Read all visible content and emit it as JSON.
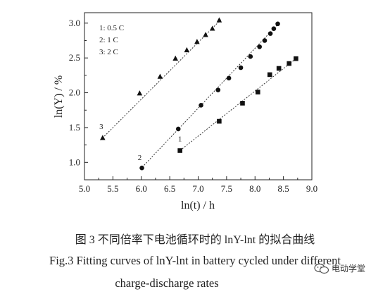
{
  "chart_data": {
    "type": "scatter",
    "xlabel": "ln(t) / h",
    "ylabel": "ln(Y) / %",
    "xlim": [
      5.0,
      9.0
    ],
    "ylim": [
      0.75,
      3.15
    ],
    "x_ticks": [
      "5.0",
      "5.5",
      "6.0",
      "6.5",
      "7.0",
      "7.5",
      "8.0",
      "8.5",
      "9.0"
    ],
    "y_ticks": [
      "1.0",
      "1.5",
      "2.0",
      "2.5",
      "3.0"
    ],
    "grid": false,
    "legend": {
      "placement": "top-left",
      "entries": [
        "1: 0.5 C",
        "2: 1 C",
        "3: 2 C"
      ]
    },
    "series": [
      {
        "name": "1: 0.5 C",
        "marker": "square",
        "curve_label": "1",
        "points": [
          {
            "x": 6.68,
            "y": 1.17
          },
          {
            "x": 7.37,
            "y": 1.59
          },
          {
            "x": 7.78,
            "y": 1.85
          },
          {
            "x": 8.05,
            "y": 2.01
          },
          {
            "x": 8.26,
            "y": 2.26
          },
          {
            "x": 8.42,
            "y": 2.35
          },
          {
            "x": 8.6,
            "y": 2.42
          },
          {
            "x": 8.72,
            "y": 2.49
          }
        ],
        "fit": [
          [
            6.68,
            1.17
          ],
          [
            8.72,
            2.49
          ]
        ]
      },
      {
        "name": "2: 1 C",
        "marker": "circle",
        "curve_label": "2",
        "points": [
          {
            "x": 6.01,
            "y": 0.92
          },
          {
            "x": 6.65,
            "y": 1.48
          },
          {
            "x": 7.05,
            "y": 1.82
          },
          {
            "x": 7.35,
            "y": 2.04
          },
          {
            "x": 7.54,
            "y": 2.21
          },
          {
            "x": 7.75,
            "y": 2.36
          },
          {
            "x": 7.92,
            "y": 2.52
          },
          {
            "x": 8.08,
            "y": 2.66
          },
          {
            "x": 8.17,
            "y": 2.75
          },
          {
            "x": 8.27,
            "y": 2.85
          },
          {
            "x": 8.33,
            "y": 2.92
          },
          {
            "x": 8.4,
            "y": 2.99
          }
        ],
        "fit": [
          [
            5.98,
            0.9
          ],
          [
            8.42,
            3.0
          ]
        ]
      },
      {
        "name": "3: 2 C",
        "marker": "triangle",
        "curve_label": "3",
        "points": [
          {
            "x": 5.32,
            "y": 1.35
          },
          {
            "x": 5.97,
            "y": 1.99
          },
          {
            "x": 6.33,
            "y": 2.23
          },
          {
            "x": 6.6,
            "y": 2.49
          },
          {
            "x": 6.8,
            "y": 2.61
          },
          {
            "x": 6.98,
            "y": 2.73
          },
          {
            "x": 7.13,
            "y": 2.83
          },
          {
            "x": 7.25,
            "y": 2.92
          },
          {
            "x": 7.37,
            "y": 3.04
          }
        ],
        "fit": [
          [
            5.28,
            1.32
          ],
          [
            7.4,
            3.05
          ]
        ]
      }
    ]
  },
  "caption": {
    "chinese": "图 3  不同倍率下电池循环时的 lnY-lnt 的拟合曲线",
    "english_line1": "Fig.3 Fitting curves of lnY-lnt in battery cycled under different",
    "english_line2": "charge-discharge rates"
  },
  "watermark": {
    "text": "电动学堂",
    "icon": "wechat-icon"
  }
}
